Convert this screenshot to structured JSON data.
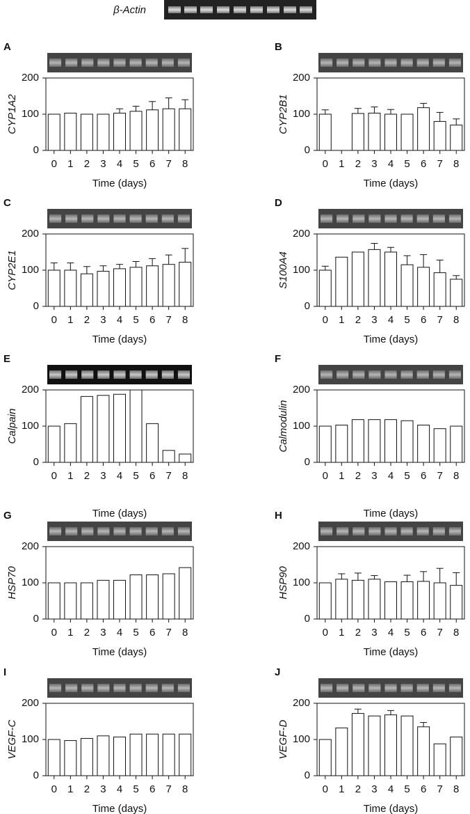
{
  "actin_label": "β-Actin",
  "chart_data": [
    {
      "type": "bar",
      "panel": "A",
      "ylabel": "CYP1A2",
      "xlabel": "Time (days)",
      "categories": [
        "0",
        "1",
        "2",
        "3",
        "4",
        "5",
        "6",
        "7",
        "8"
      ],
      "values": [
        100,
        103,
        100,
        100,
        103,
        108,
        112,
        115,
        115
      ],
      "errors": [
        null,
        null,
        null,
        null,
        12,
        14,
        23,
        30,
        25
      ],
      "ylim": [
        0,
        200
      ],
      "yticks": [
        0,
        100,
        200
      ]
    },
    {
      "type": "bar",
      "panel": "B",
      "ylabel": "CYP2B1",
      "xlabel": "Time (days)",
      "categories": [
        "0",
        "1",
        "2",
        "3",
        "4",
        "5",
        "6",
        "7",
        "8"
      ],
      "values": [
        100,
        0,
        102,
        103,
        100,
        100,
        118,
        80,
        70
      ],
      "errors": [
        12,
        null,
        14,
        17,
        13,
        null,
        12,
        25,
        17
      ],
      "ylim": [
        0,
        200
      ],
      "yticks": [
        0,
        100,
        200
      ]
    },
    {
      "type": "bar",
      "panel": "C",
      "ylabel": "CYP2E1",
      "xlabel": "Time (days)",
      "categories": [
        "0",
        "1",
        "2",
        "3",
        "4",
        "5",
        "6",
        "7",
        "8"
      ],
      "values": [
        100,
        100,
        90,
        97,
        104,
        108,
        112,
        116,
        122
      ],
      "errors": [
        20,
        20,
        20,
        15,
        12,
        16,
        20,
        26,
        38
      ],
      "ylim": [
        0,
        200
      ],
      "yticks": [
        0,
        100,
        200
      ]
    },
    {
      "type": "bar",
      "panel": "D",
      "ylabel": "S100A4",
      "xlabel": "Time (days)",
      "categories": [
        "0",
        "1",
        "2",
        "3",
        "4",
        "5",
        "6",
        "7",
        "8"
      ],
      "values": [
        100,
        136,
        150,
        157,
        150,
        115,
        108,
        93,
        75
      ],
      "errors": [
        11,
        null,
        null,
        17,
        13,
        25,
        35,
        35,
        10
      ],
      "ylim": [
        0,
        200
      ],
      "yticks": [
        0,
        100,
        200
      ]
    },
    {
      "type": "bar",
      "panel": "E",
      "ylabel": "Calpain",
      "xlabel": "Time (days)",
      "categories": [
        "0",
        "1",
        "2",
        "3",
        "4",
        "5",
        "6",
        "7",
        "8"
      ],
      "values": [
        100,
        107,
        182,
        185,
        188,
        200,
        107,
        33,
        23
      ],
      "ylim": [
        0,
        200
      ],
      "yticks": [
        0,
        100,
        200
      ]
    },
    {
      "type": "bar",
      "panel": "F",
      "ylabel": "Calmodulin",
      "xlabel": "Time (days)",
      "categories": [
        "0",
        "1",
        "2",
        "3",
        "4",
        "5",
        "6",
        "7",
        "8"
      ],
      "values": [
        100,
        103,
        118,
        118,
        118,
        115,
        103,
        93,
        100
      ],
      "ylim": [
        0,
        200
      ],
      "yticks": [
        0,
        100,
        200
      ]
    },
    {
      "type": "bar",
      "panel": "G",
      "ylabel": "HSP70",
      "xlabel": "Time (days)",
      "categories": [
        "0",
        "1",
        "2",
        "3",
        "4",
        "5",
        "6",
        "7",
        "8"
      ],
      "values": [
        100,
        100,
        100,
        107,
        107,
        122,
        122,
        125,
        142
      ],
      "ylim": [
        0,
        200
      ],
      "yticks": [
        0,
        100,
        200
      ]
    },
    {
      "type": "bar",
      "panel": "H",
      "ylabel": "HSP90",
      "xlabel": "Time (days)",
      "categories": [
        "0",
        "1",
        "2",
        "3",
        "4",
        "5",
        "6",
        "7",
        "8"
      ],
      "values": [
        100,
        110,
        107,
        110,
        103,
        103,
        104,
        100,
        93
      ],
      "errors": [
        null,
        15,
        20,
        10,
        null,
        18,
        27,
        40,
        35
      ],
      "ylim": [
        0,
        200
      ],
      "yticks": [
        0,
        100,
        200
      ]
    },
    {
      "type": "bar",
      "panel": "I",
      "ylabel": "VEGF-C",
      "xlabel": "Time (days)",
      "categories": [
        "0",
        "1",
        "2",
        "3",
        "4",
        "5",
        "6",
        "7",
        "8"
      ],
      "values": [
        100,
        97,
        103,
        110,
        107,
        115,
        115,
        115,
        115
      ],
      "ylim": [
        0,
        200
      ],
      "yticks": [
        0,
        100,
        200
      ]
    },
    {
      "type": "bar",
      "panel": "J",
      "ylabel": "VEGF-D",
      "xlabel": "Time (days)",
      "categories": [
        "0",
        "1",
        "2",
        "3",
        "4",
        "5",
        "6",
        "7",
        "8"
      ],
      "values": [
        100,
        132,
        172,
        165,
        168,
        165,
        135,
        88,
        107
      ],
      "errors": [
        null,
        null,
        12,
        null,
        12,
        null,
        12,
        null,
        null
      ],
      "ylim": [
        0,
        200
      ],
      "yticks": [
        0,
        100,
        200
      ]
    }
  ]
}
